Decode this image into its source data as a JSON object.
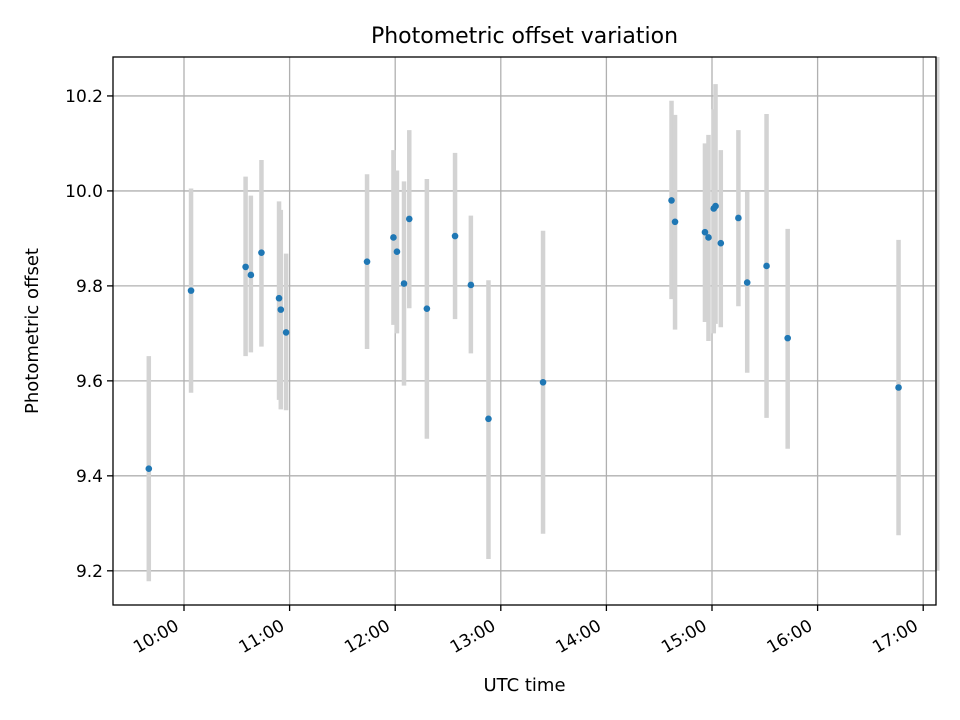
{
  "chart_data": {
    "type": "scatter",
    "title": "Photometric offset variation",
    "xlabel": "UTC time",
    "ylabel": "Photometric offset",
    "x_unit": "UTC time of day (hh:mm)",
    "xlim": [
      "09:40",
      "17:08"
    ],
    "ylim": [
      9.128,
      10.282
    ],
    "x_ticks": [
      "10:00",
      "11:00",
      "12:00",
      "13:00",
      "14:00",
      "15:00",
      "16:00",
      "17:00"
    ],
    "y_ticks": [
      9.2,
      9.4,
      9.6,
      9.8,
      10.0,
      10.2
    ],
    "y_tick_labels": [
      "9.2",
      "9.4",
      "9.6",
      "9.8",
      "10.0",
      "10.2"
    ],
    "grid": true,
    "point_color": "#1f77b4",
    "errorbar_color": "#d3d3d3",
    "points": [
      {
        "t": "09:40",
        "y": 9.415,
        "lo": 9.178,
        "hi": 9.652
      },
      {
        "t": "10:04",
        "y": 9.79,
        "lo": 9.575,
        "hi": 10.005
      },
      {
        "t": "10:35",
        "y": 9.84,
        "lo": 9.652,
        "hi": 10.03
      },
      {
        "t": "10:38",
        "y": 9.823,
        "lo": 9.66,
        "hi": 9.99
      },
      {
        "t": "10:44",
        "y": 9.87,
        "lo": 9.672,
        "hi": 10.065
      },
      {
        "t": "10:54",
        "y": 9.774,
        "lo": 9.56,
        "hi": 9.978
      },
      {
        "t": "10:55",
        "y": 9.75,
        "lo": 9.54,
        "hi": 9.96
      },
      {
        "t": "10:58",
        "y": 9.702,
        "lo": 9.538,
        "hi": 9.868
      },
      {
        "t": "11:44",
        "y": 9.851,
        "lo": 9.667,
        "hi": 10.035
      },
      {
        "t": "11:59",
        "y": 9.902,
        "lo": 9.718,
        "hi": 10.086
      },
      {
        "t": "12:01",
        "y": 9.872,
        "lo": 9.7,
        "hi": 10.043
      },
      {
        "t": "12:05",
        "y": 9.805,
        "lo": 9.59,
        "hi": 10.02
      },
      {
        "t": "12:08",
        "y": 9.941,
        "lo": 9.753,
        "hi": 10.128
      },
      {
        "t": "12:18",
        "y": 9.752,
        "lo": 9.478,
        "hi": 10.025
      },
      {
        "t": "12:34",
        "y": 9.905,
        "lo": 9.73,
        "hi": 10.08
      },
      {
        "t": "12:43",
        "y": 9.802,
        "lo": 9.658,
        "hi": 9.948
      },
      {
        "t": "12:53",
        "y": 9.52,
        "lo": 9.225,
        "hi": 9.812
      },
      {
        "t": "13:24",
        "y": 9.597,
        "lo": 9.278,
        "hi": 9.916
      },
      {
        "t": "14:37",
        "y": 9.98,
        "lo": 9.772,
        "hi": 10.19
      },
      {
        "t": "14:39",
        "y": 9.935,
        "lo": 9.708,
        "hi": 10.16
      },
      {
        "t": "14:56",
        "y": 9.913,
        "lo": 9.724,
        "hi": 10.1
      },
      {
        "t": "14:58",
        "y": 9.902,
        "lo": 9.684,
        "hi": 10.118
      },
      {
        "t": "15:01",
        "y": 9.963,
        "lo": 9.7,
        "hi": 10.172
      },
      {
        "t": "15:02",
        "y": 9.968,
        "lo": 9.72,
        "hi": 10.225
      },
      {
        "t": "15:05",
        "y": 9.89,
        "lo": 9.713,
        "hi": 10.086
      },
      {
        "t": "15:15",
        "y": 9.943,
        "lo": 9.757,
        "hi": 10.128
      },
      {
        "t": "15:20",
        "y": 9.807,
        "lo": 9.617,
        "hi": 9.998
      },
      {
        "t": "15:31",
        "y": 9.842,
        "lo": 9.522,
        "hi": 10.162
      },
      {
        "t": "15:43",
        "y": 9.69,
        "lo": 9.457,
        "hi": 9.92
      },
      {
        "t": "16:46",
        "y": 9.586,
        "lo": 9.275,
        "hi": 9.897
      },
      {
        "t": "17:08",
        "y": null,
        "lo": 9.2,
        "hi": 10.282
      }
    ]
  }
}
